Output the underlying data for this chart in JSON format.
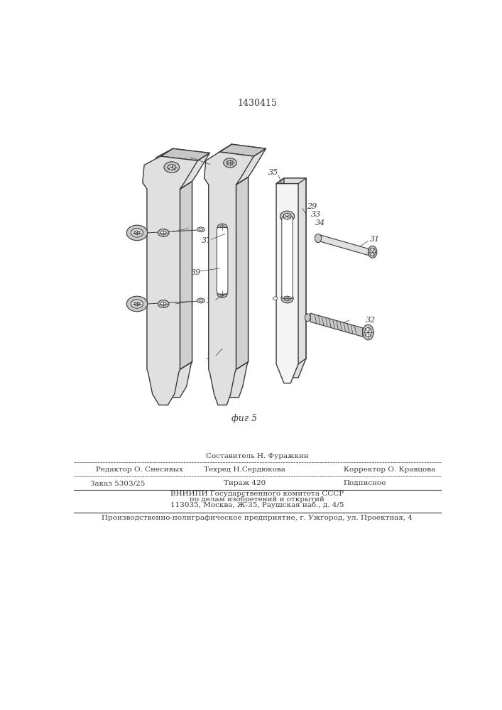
{
  "title": "1430415",
  "bg_color": "#ffffff",
  "line_color": "#3a3a3a",
  "fig_label": "фиг 5",
  "footer": {
    "составитель": "Составитель Н. Фуражкин",
    "редактор": "Редактор О. Снесивых",
    "техред": "Техред Н.Сердюкова",
    "корректор": "Корректор О. Кравцова",
    "заказ": "Заказ 5303/25",
    "тираж": "Тираж 420",
    "подписное": "Подписное",
    "вниипи": "ВНИИПИ Государственного комитета СССР",
    "по_делам": "по делам изобретений и открытий",
    "адрес": "113035, Москва, Ж-35, Раушская наб., д. 4/5",
    "предприятие": "Производственно-полиграфическое предприятие, г. Ужгород, ул. Проектная, 4"
  }
}
